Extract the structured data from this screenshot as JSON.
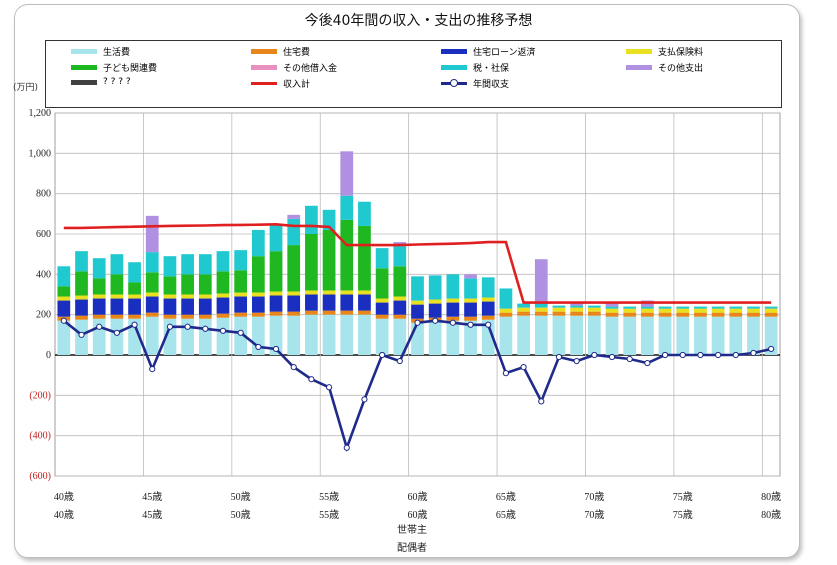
{
  "colors": {
    "living": "#a8e4ec",
    "housing": "#e8861a",
    "loan": "#1a2fc0",
    "insurance": "#e8e020",
    "children": "#20b820",
    "borrowing": "#e890c0",
    "tax": "#20c8d0",
    "other": "#b090e0",
    "savings": "#404040",
    "income": "#e02020",
    "balance": "#1f2a8a"
  },
  "chart_data": {
    "type": "bar",
    "title": "今後40年間の収入・支出の推移予想",
    "unit_label": "(万円)",
    "ylim": [
      -600,
      1200
    ],
    "y_ticks": [
      "1,200",
      "1,000",
      "800",
      "600",
      "400",
      "200",
      "0",
      "(200)",
      "(400)",
      "(600)"
    ],
    "x_tick_labels": {
      "row1": [
        "40歳",
        "45歳",
        "50歳",
        "55歳",
        "60歳",
        "65歳",
        "70歳",
        "75歳",
        "80歳"
      ],
      "row2": [
        "40歳",
        "45歳",
        "50歳",
        "55歳",
        "60歳",
        "65歳",
        "70歳",
        "75歳",
        "80歳"
      ]
    },
    "x_axis_title": [
      "世帯主",
      "配偶者"
    ],
    "ages": [
      40,
      41,
      42,
      43,
      44,
      45,
      46,
      47,
      48,
      49,
      50,
      51,
      52,
      53,
      54,
      55,
      56,
      57,
      58,
      59,
      60,
      61,
      62,
      63,
      64,
      65,
      66,
      67,
      68,
      69,
      70,
      71,
      72,
      73,
      74,
      75,
      76,
      77,
      78,
      79,
      80
    ],
    "legend": [
      {
        "key": "living",
        "label": "生活費",
        "kind": "bar"
      },
      {
        "key": "housing",
        "label": "住宅費",
        "kind": "bar"
      },
      {
        "key": "loan",
        "label": "住宅ローン返済",
        "kind": "bar"
      },
      {
        "key": "insurance",
        "label": "支払保険料",
        "kind": "bar"
      },
      {
        "key": "children",
        "label": "子ども関連費",
        "kind": "bar"
      },
      {
        "key": "borrowing",
        "label": "その他借入金",
        "kind": "bar"
      },
      {
        "key": "tax",
        "label": "税・社保",
        "kind": "bar"
      },
      {
        "key": "other",
        "label": "その他支出",
        "kind": "bar"
      },
      {
        "key": "savings",
        "label": "? ? ? ?",
        "kind": "bar"
      },
      {
        "key": "income",
        "label": "収入計",
        "kind": "line"
      },
      {
        "key": "balance",
        "label": "年間収支",
        "kind": "dotline"
      }
    ],
    "series": [
      {
        "name": "生活費",
        "key": "living",
        "values": [
          170,
          175,
          180,
          180,
          180,
          190,
          180,
          180,
          180,
          185,
          190,
          190,
          195,
          195,
          200,
          200,
          200,
          200,
          180,
          180,
          160,
          165,
          170,
          170,
          175,
          190,
          195,
          195,
          195,
          195,
          195,
          190,
          190,
          190,
          190,
          190,
          190,
          190,
          190,
          190,
          190
        ]
      },
      {
        "name": "住宅費",
        "key": "housing",
        "values": [
          20,
          20,
          20,
          20,
          20,
          20,
          20,
          20,
          20,
          20,
          20,
          20,
          20,
          20,
          20,
          20,
          20,
          20,
          20,
          20,
          20,
          20,
          20,
          20,
          20,
          20,
          20,
          20,
          20,
          20,
          20,
          20,
          20,
          20,
          20,
          20,
          20,
          20,
          20,
          20,
          20
        ]
      },
      {
        "name": "住宅ローン返済",
        "key": "loan",
        "values": [
          80,
          80,
          80,
          80,
          80,
          80,
          80,
          80,
          80,
          80,
          80,
          80,
          80,
          80,
          80,
          80,
          80,
          80,
          60,
          70,
          70,
          70,
          70,
          70,
          70,
          0,
          0,
          0,
          0,
          0,
          0,
          0,
          0,
          0,
          0,
          0,
          0,
          0,
          0,
          0,
          0
        ]
      },
      {
        "name": "支払保険料",
        "key": "insurance",
        "values": [
          20,
          20,
          20,
          20,
          20,
          20,
          20,
          20,
          20,
          20,
          20,
          20,
          20,
          20,
          20,
          20,
          20,
          20,
          20,
          20,
          20,
          20,
          20,
          20,
          20,
          20,
          20,
          20,
          20,
          20,
          20,
          20,
          20,
          20,
          20,
          20,
          20,
          20,
          20,
          20,
          20
        ]
      },
      {
        "name": "子ども関連費",
        "key": "children",
        "values": [
          50,
          120,
          80,
          100,
          60,
          100,
          90,
          100,
          100,
          110,
          110,
          180,
          200,
          230,
          280,
          300,
          350,
          320,
          150,
          150,
          0,
          0,
          0,
          0,
          0,
          0,
          0,
          0,
          0,
          0,
          0,
          0,
          0,
          0,
          0,
          0,
          0,
          0,
          0,
          0,
          0
        ]
      },
      {
        "name": "その他借入金",
        "key": "borrowing",
        "values": [
          0,
          0,
          0,
          0,
          0,
          0,
          0,
          0,
          0,
          0,
          0,
          0,
          0,
          0,
          0,
          0,
          0,
          0,
          0,
          0,
          0,
          0,
          0,
          0,
          0,
          0,
          0,
          0,
          0,
          0,
          0,
          0,
          0,
          0,
          0,
          0,
          0,
          0,
          0,
          0,
          0
        ]
      },
      {
        "name": "税・社保",
        "key": "tax",
        "values": [
          100,
          100,
          100,
          100,
          100,
          100,
          100,
          100,
          100,
          100,
          100,
          130,
          130,
          130,
          140,
          100,
          120,
          120,
          100,
          100,
          120,
          120,
          120,
          100,
          100,
          100,
          20,
          20,
          10,
          10,
          10,
          10,
          10,
          10,
          10,
          10,
          10,
          10,
          10,
          10,
          10
        ]
      },
      {
        "name": "その他支出",
        "key": "other",
        "values": [
          0,
          0,
          0,
          0,
          0,
          180,
          0,
          0,
          0,
          0,
          0,
          0,
          0,
          20,
          0,
          0,
          220,
          0,
          0,
          20,
          0,
          0,
          0,
          20,
          0,
          0,
          0,
          220,
          0,
          20,
          0,
          20,
          0,
          30,
          0,
          0,
          0,
          0,
          0,
          0,
          0
        ]
      },
      {
        "name": "? ? ? ?",
        "key": "savings",
        "values": [
          0,
          0,
          0,
          0,
          0,
          0,
          0,
          0,
          0,
          0,
          0,
          0,
          0,
          0,
          0,
          0,
          0,
          0,
          0,
          0,
          0,
          0,
          0,
          0,
          0,
          0,
          0,
          0,
          0,
          0,
          0,
          0,
          0,
          0,
          0,
          0,
          0,
          0,
          0,
          0,
          0
        ]
      }
    ],
    "income": [
      630,
      630,
      632,
      634,
      636,
      638,
      640,
      641,
      642,
      644,
      645,
      646,
      648,
      640,
      640,
      635,
      545,
      545,
      545,
      545,
      548,
      550,
      552,
      555,
      560,
      560,
      260,
      260,
      260,
      260,
      260,
      260,
      260,
      260,
      260,
      260,
      260,
      260,
      260,
      260,
      260
    ],
    "balance": [
      170,
      100,
      140,
      110,
      150,
      -70,
      140,
      140,
      130,
      120,
      110,
      40,
      30,
      -60,
      -120,
      -160,
      -460,
      -220,
      0,
      -30,
      160,
      170,
      160,
      150,
      150,
      -90,
      -60,
      -230,
      -10,
      -30,
      0,
      -10,
      -20,
      -40,
      0,
      0,
      0,
      0,
      0,
      10,
      30
    ]
  }
}
